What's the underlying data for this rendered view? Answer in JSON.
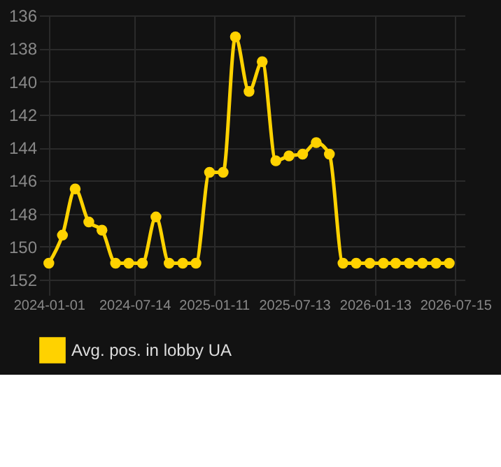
{
  "chart_data": {
    "type": "line",
    "marker": "circle",
    "grid": true,
    "legend": "bottom",
    "x": [
      "2024-01-01",
      "2024-02-01",
      "2024-03-01",
      "2024-04-01",
      "2024-05-01",
      "2024-06-01",
      "2024-07-01",
      "2024-08-01",
      "2024-09-01",
      "2024-10-01",
      "2024-11-01",
      "2024-12-01",
      "2025-01-01",
      "2025-02-01",
      "2025-03-01",
      "2025-04-01",
      "2025-05-01",
      "2025-06-01",
      "2025-07-01",
      "2025-08-01",
      "2025-09-01",
      "2025-10-01",
      "2025-11-01",
      "2025-12-01",
      "2026-01-01",
      "2026-02-01",
      "2026-03-01",
      "2026-04-01",
      "2026-05-01",
      "2026-06-01",
      "2026-07-01"
    ],
    "series": [
      {
        "name": "Avg. pos. in lobby UA",
        "color": "#ffd200",
        "values": [
          151,
          149.3,
          146.5,
          148.5,
          149,
          151,
          151,
          151,
          148.2,
          151,
          151,
          151,
          145.5,
          145.5,
          137.3,
          140.6,
          138.8,
          144.8,
          144.5,
          144.4,
          143.7,
          144.4,
          151,
          151,
          151,
          151,
          151,
          151,
          151,
          151,
          151
        ]
      }
    ],
    "xlim": [
      "2023-12-10",
      "2026-08-05"
    ],
    "xticks": [
      "2024-01-01",
      "2024-07-14",
      "2025-01-11",
      "2025-07-13",
      "2026-01-13",
      "2026-07-15"
    ],
    "ylim": [
      152.5,
      136
    ],
    "yticks": [
      136,
      138,
      140,
      142,
      144,
      146,
      148,
      150,
      152
    ]
  }
}
